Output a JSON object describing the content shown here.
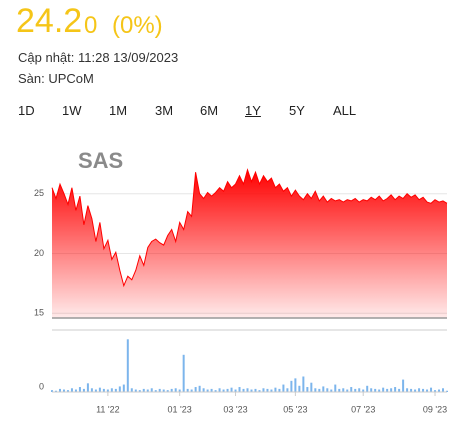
{
  "header": {
    "price": "24.2",
    "change": "0",
    "change_pct": "(0%)",
    "updated": "Cập nhật: 11:28 13/09/2023",
    "exchange": "Sàn: UPCoM"
  },
  "ranges": [
    "1D",
    "1W",
    "1M",
    "3M",
    "6M",
    "1Y",
    "5Y",
    "ALL"
  ],
  "selected_range": 5,
  "chart_data": [
    {
      "type": "area",
      "title": "SAS",
      "color": "#ff0000",
      "values": [
        25.5,
        24.6,
        25.8,
        25.0,
        24.1,
        25.5,
        23.6,
        24.8,
        22.4,
        24.0,
        22.9,
        21.0,
        22.6,
        20.4,
        21.1,
        19.5,
        20.1,
        18.6,
        17.3,
        18.1,
        17.8,
        18.6,
        19.8,
        19.0,
        20.5,
        21.0,
        21.2,
        20.9,
        20.7,
        21.5,
        22.0,
        21.0,
        22.6,
        22.0,
        23.5,
        23.1,
        26.8,
        25.0,
        24.6,
        25.1,
        24.8,
        25.1,
        25.5,
        25.2,
        26.0,
        25.5,
        25.8,
        26.5,
        25.8,
        27.0,
        26.0,
        26.8,
        25.8,
        26.5,
        26.0,
        26.3,
        25.5,
        25.8,
        25.2,
        25.5,
        24.8,
        25.3,
        24.8,
        24.5,
        25.0,
        24.6,
        25.2,
        24.4,
        24.8,
        24.3,
        24.6,
        24.4,
        24.5,
        24.3,
        24.5,
        24.4,
        24.6,
        24.3,
        24.5,
        24.4,
        24.7,
        24.5,
        24.8,
        24.4,
        24.6,
        24.9,
        24.5,
        24.8,
        24.6,
        25.0,
        24.7,
        24.9,
        24.5,
        24.7,
        24.3,
        24.2,
        24.5,
        24.3,
        24.4,
        24.2
      ],
      "xlim": [
        0,
        99
      ],
      "ylim": [
        14.6,
        27.4
      ],
      "yticks": [
        15,
        20,
        25
      ],
      "grid": true
    },
    {
      "type": "bar",
      "color": "#7cb5ec",
      "values": [
        3,
        2,
        5,
        4,
        3,
        6,
        4,
        8,
        5,
        14,
        6,
        4,
        7,
        5,
        4,
        6,
        5,
        9,
        12,
        85,
        6,
        4,
        3,
        5,
        4,
        6,
        3,
        5,
        4,
        3,
        5,
        6,
        4,
        60,
        5,
        4,
        8,
        10,
        6,
        4,
        5,
        3,
        6,
        4,
        5,
        7,
        4,
        8,
        5,
        6,
        4,
        5,
        3,
        6,
        5,
        4,
        7,
        5,
        12,
        6,
        18,
        22,
        10,
        25,
        8,
        15,
        6,
        5,
        9,
        6,
        4,
        12,
        5,
        6,
        4,
        8,
        5,
        6,
        4,
        10,
        6,
        5,
        4,
        7,
        5,
        6,
        8,
        5,
        20,
        6,
        5,
        4,
        6,
        5,
        4,
        7,
        3,
        4,
        6,
        2
      ],
      "xlim": [
        0,
        99
      ],
      "ylim": [
        0,
        100
      ],
      "yticks": [
        0
      ],
      "xticks": [
        {
          "value": 14,
          "label": "11 '22"
        },
        {
          "value": 32,
          "label": "01 '23"
        },
        {
          "value": 46,
          "label": "03 '23"
        },
        {
          "value": 61,
          "label": "05 '23"
        },
        {
          "value": 78,
          "label": "07 '23"
        },
        {
          "value": 96,
          "label": "09 '23"
        }
      ]
    }
  ]
}
